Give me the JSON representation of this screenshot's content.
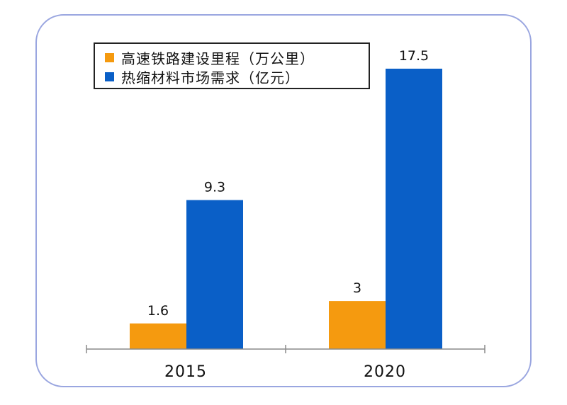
{
  "chart_data": {
    "type": "bar",
    "categories": [
      "2015",
      "2020"
    ],
    "series": [
      {
        "name": "高速铁路建设里程（万公里）",
        "values": [
          1.6,
          3
        ],
        "color": "#f59a0f"
      },
      {
        "name": "热缩材料市场需求（亿元）",
        "values": [
          9.3,
          17.5
        ],
        "color": "#0a5fc7"
      }
    ],
    "data_labels": [
      [
        "1.6",
        "3"
      ],
      [
        "9.3",
        "17.5"
      ]
    ],
    "title": "",
    "xlabel": "",
    "ylabel": "",
    "ylim": [
      0,
      17.5
    ],
    "grid": false,
    "legend": "top-left",
    "axis_color": "#8a8a8a"
  }
}
